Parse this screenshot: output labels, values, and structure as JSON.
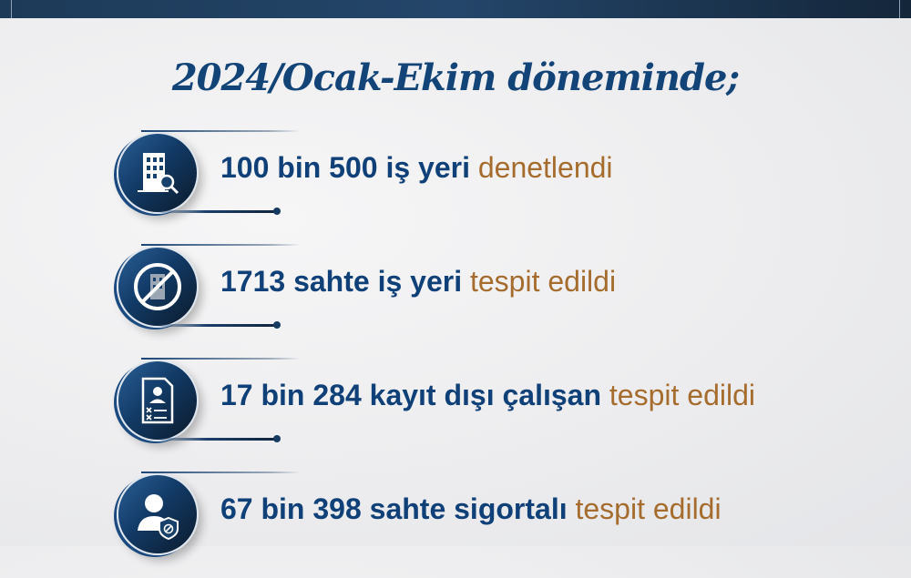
{
  "title": "2024/Ocak-Ekim döneminde;",
  "colors": {
    "primary": "#0f4077",
    "accent": "#a56c2d",
    "band": "#1d3a58"
  },
  "items": [
    {
      "icon": "building-search-icon",
      "strong": "100 bin 500 iş yeri",
      "soft": "denetlendi"
    },
    {
      "icon": "building-prohibited-icon",
      "strong": "1713 sahte iş yeri",
      "soft": "tespit edildi"
    },
    {
      "icon": "document-person-icon",
      "strong": "17 bin 284 kayıt dışı çalışan",
      "soft": "tespit edildi"
    },
    {
      "icon": "person-shield-icon",
      "strong": "67 bin 398 sahte sigortalı",
      "soft": "tespit edildi"
    }
  ]
}
